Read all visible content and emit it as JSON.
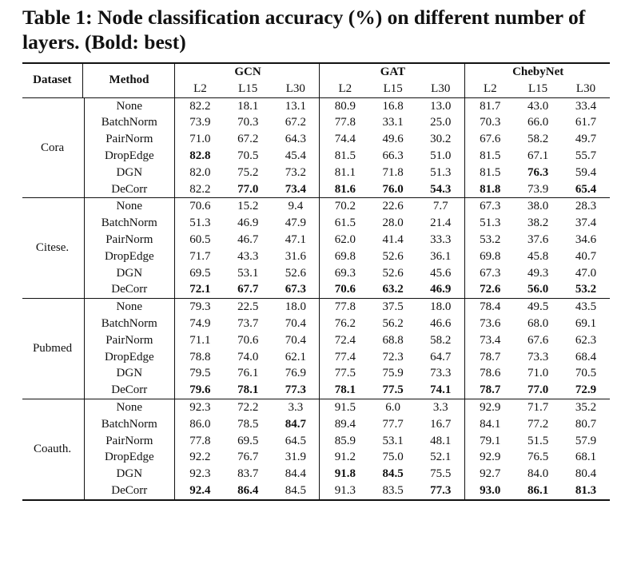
{
  "caption": "Table 1: Node classification accuracy (%) on different number of layers. (Bold: best)",
  "headers": {
    "dataset": "Dataset",
    "method": "Method",
    "groups": [
      "GCN",
      "GAT",
      "ChebyNet"
    ],
    "layers": [
      "L2",
      "L15",
      "L30"
    ]
  },
  "sections": [
    {
      "dataset": "Cora",
      "rows": [
        {
          "method": "None",
          "values": [
            "82.2",
            "18.1",
            "13.1",
            "80.9",
            "16.8",
            "13.0",
            "81.7",
            "43.0",
            "33.4"
          ],
          "bold": []
        },
        {
          "method": "BatchNorm",
          "values": [
            "73.9",
            "70.3",
            "67.2",
            "77.8",
            "33.1",
            "25.0",
            "70.3",
            "66.0",
            "61.7"
          ],
          "bold": []
        },
        {
          "method": "PairNorm",
          "values": [
            "71.0",
            "67.2",
            "64.3",
            "74.4",
            "49.6",
            "30.2",
            "67.6",
            "58.2",
            "49.7"
          ],
          "bold": []
        },
        {
          "method": "DropEdge",
          "values": [
            "82.8",
            "70.5",
            "45.4",
            "81.5",
            "66.3",
            "51.0",
            "81.5",
            "67.1",
            "55.7"
          ],
          "bold": [
            0
          ]
        },
        {
          "method": "DGN",
          "values": [
            "82.0",
            "75.2",
            "73.2",
            "81.1",
            "71.8",
            "51.3",
            "81.5",
            "76.3",
            "59.4"
          ],
          "bold": [
            7
          ]
        },
        {
          "method": "DeCorr",
          "values": [
            "82.2",
            "77.0",
            "73.4",
            "81.6",
            "76.0",
            "54.3",
            "81.8",
            "73.9",
            "65.4"
          ],
          "bold": [
            1,
            2,
            3,
            4,
            5,
            6,
            8
          ]
        }
      ]
    },
    {
      "dataset": "Citese.",
      "rows": [
        {
          "method": "None",
          "values": [
            "70.6",
            "15.2",
            "9.4",
            "70.2",
            "22.6",
            "7.7",
            "67.3",
            "38.0",
            "28.3"
          ],
          "bold": []
        },
        {
          "method": "BatchNorm",
          "values": [
            "51.3",
            "46.9",
            "47.9",
            "61.5",
            "28.0",
            "21.4",
            "51.3",
            "38.2",
            "37.4"
          ],
          "bold": []
        },
        {
          "method": "PairNorm",
          "values": [
            "60.5",
            "46.7",
            "47.1",
            "62.0",
            "41.4",
            "33.3",
            "53.2",
            "37.6",
            "34.6"
          ],
          "bold": []
        },
        {
          "method": "DropEdge",
          "values": [
            "71.7",
            "43.3",
            "31.6",
            "69.8",
            "52.6",
            "36.1",
            "69.8",
            "45.8",
            "40.7"
          ],
          "bold": []
        },
        {
          "method": "DGN",
          "values": [
            "69.5",
            "53.1",
            "52.6",
            "69.3",
            "52.6",
            "45.6",
            "67.3",
            "49.3",
            "47.0"
          ],
          "bold": []
        },
        {
          "method": "DeCorr",
          "values": [
            "72.1",
            "67.7",
            "67.3",
            "70.6",
            "63.2",
            "46.9",
            "72.6",
            "56.0",
            "53.2"
          ],
          "bold": [
            0,
            1,
            2,
            3,
            4,
            5,
            6,
            7,
            8
          ]
        }
      ]
    },
    {
      "dataset": "Pubmed",
      "rows": [
        {
          "method": "None",
          "values": [
            "79.3",
            "22.5",
            "18.0",
            "77.8",
            "37.5",
            "18.0",
            "78.4",
            "49.5",
            "43.5"
          ],
          "bold": []
        },
        {
          "method": "BatchNorm",
          "values": [
            "74.9",
            "73.7",
            "70.4",
            "76.2",
            "56.2",
            "46.6",
            "73.6",
            "68.0",
            "69.1"
          ],
          "bold": []
        },
        {
          "method": "PairNorm",
          "values": [
            "71.1",
            "70.6",
            "70.4",
            "72.4",
            "68.8",
            "58.2",
            "73.4",
            "67.6",
            "62.3"
          ],
          "bold": []
        },
        {
          "method": "DropEdge",
          "values": [
            "78.8",
            "74.0",
            "62.1",
            "77.4",
            "72.3",
            "64.7",
            "78.7",
            "73.3",
            "68.4"
          ],
          "bold": []
        },
        {
          "method": "DGN",
          "values": [
            "79.5",
            "76.1",
            "76.9",
            "77.5",
            "75.9",
            "73.3",
            "78.6",
            "71.0",
            "70.5"
          ],
          "bold": []
        },
        {
          "method": "DeCorr",
          "values": [
            "79.6",
            "78.1",
            "77.3",
            "78.1",
            "77.5",
            "74.1",
            "78.7",
            "77.0",
            "72.9"
          ],
          "bold": [
            0,
            1,
            2,
            3,
            4,
            5,
            6,
            7,
            8
          ]
        }
      ]
    },
    {
      "dataset": "Coauth.",
      "rows": [
        {
          "method": "None",
          "values": [
            "92.3",
            "72.2",
            "3.3",
            "91.5",
            "6.0",
            "3.3",
            "92.9",
            "71.7",
            "35.2"
          ],
          "bold": []
        },
        {
          "method": "BatchNorm",
          "values": [
            "86.0",
            "78.5",
            "84.7",
            "89.4",
            "77.7",
            "16.7",
            "84.1",
            "77.2",
            "80.7"
          ],
          "bold": [
            2
          ]
        },
        {
          "method": "PairNorm",
          "values": [
            "77.8",
            "69.5",
            "64.5",
            "85.9",
            "53.1",
            "48.1",
            "79.1",
            "51.5",
            "57.9"
          ],
          "bold": []
        },
        {
          "method": "DropEdge",
          "values": [
            "92.2",
            "76.7",
            "31.9",
            "91.2",
            "75.0",
            "52.1",
            "92.9",
            "76.5",
            "68.1"
          ],
          "bold": []
        },
        {
          "method": "DGN",
          "values": [
            "92.3",
            "83.7",
            "84.4",
            "91.8",
            "84.5",
            "75.5",
            "92.7",
            "84.0",
            "80.4"
          ],
          "bold": [
            3,
            4
          ]
        },
        {
          "method": "DeCorr",
          "values": [
            "92.4",
            "86.4",
            "84.5",
            "91.3",
            "83.5",
            "77.3",
            "93.0",
            "86.1",
            "81.3"
          ],
          "bold": [
            0,
            1,
            5,
            6,
            7,
            8
          ]
        }
      ]
    }
  ]
}
